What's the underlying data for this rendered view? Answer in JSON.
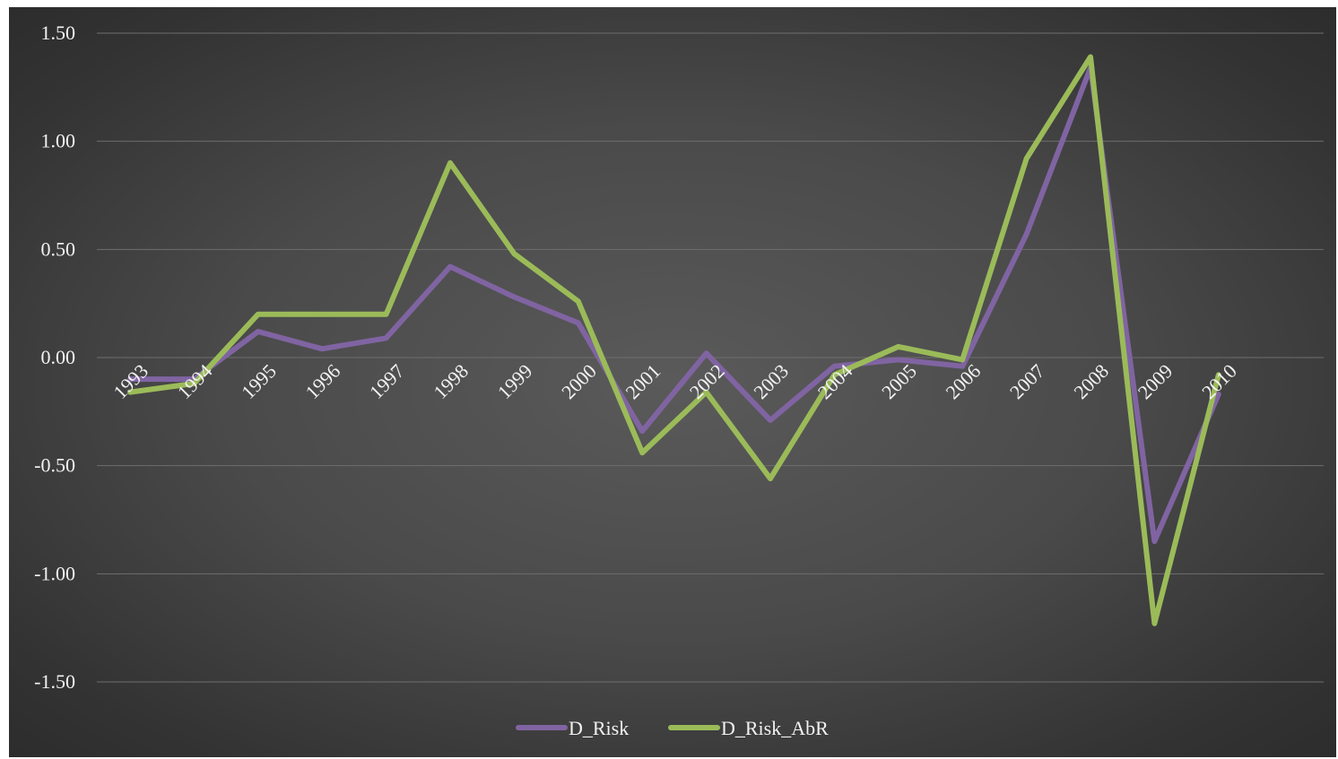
{
  "chart_data": {
    "type": "line",
    "categories": [
      "1993",
      "1994",
      "1995",
      "1996",
      "1997",
      "1998",
      "1999",
      "2000",
      "2001",
      "2002",
      "2003",
      "2004",
      "2005",
      "2006",
      "2007",
      "2008",
      "2009",
      "2010"
    ],
    "series": [
      {
        "name": "D_Risk",
        "color": "#8064a2",
        "values": [
          -0.1,
          -0.1,
          0.12,
          0.04,
          0.09,
          0.42,
          0.28,
          0.16,
          -0.34,
          0.02,
          -0.29,
          -0.04,
          -0.01,
          -0.04,
          0.57,
          1.34,
          -0.85,
          -0.17
        ]
      },
      {
        "name": "D_Risk_AbR",
        "color": "#9bbb59",
        "values": [
          -0.16,
          -0.12,
          0.2,
          0.2,
          0.2,
          0.9,
          0.48,
          0.26,
          -0.44,
          -0.16,
          -0.56,
          -0.08,
          0.05,
          -0.01,
          0.92,
          1.39,
          -1.23,
          -0.08
        ]
      }
    ],
    "y_ticks": [
      "1.50",
      "1.00",
      "0.50",
      "0.00",
      "-0.50",
      "-1.00",
      "-1.50"
    ],
    "ylim": [
      -1.5,
      1.5
    ],
    "grid": true,
    "legend_position": "bottom-center"
  }
}
